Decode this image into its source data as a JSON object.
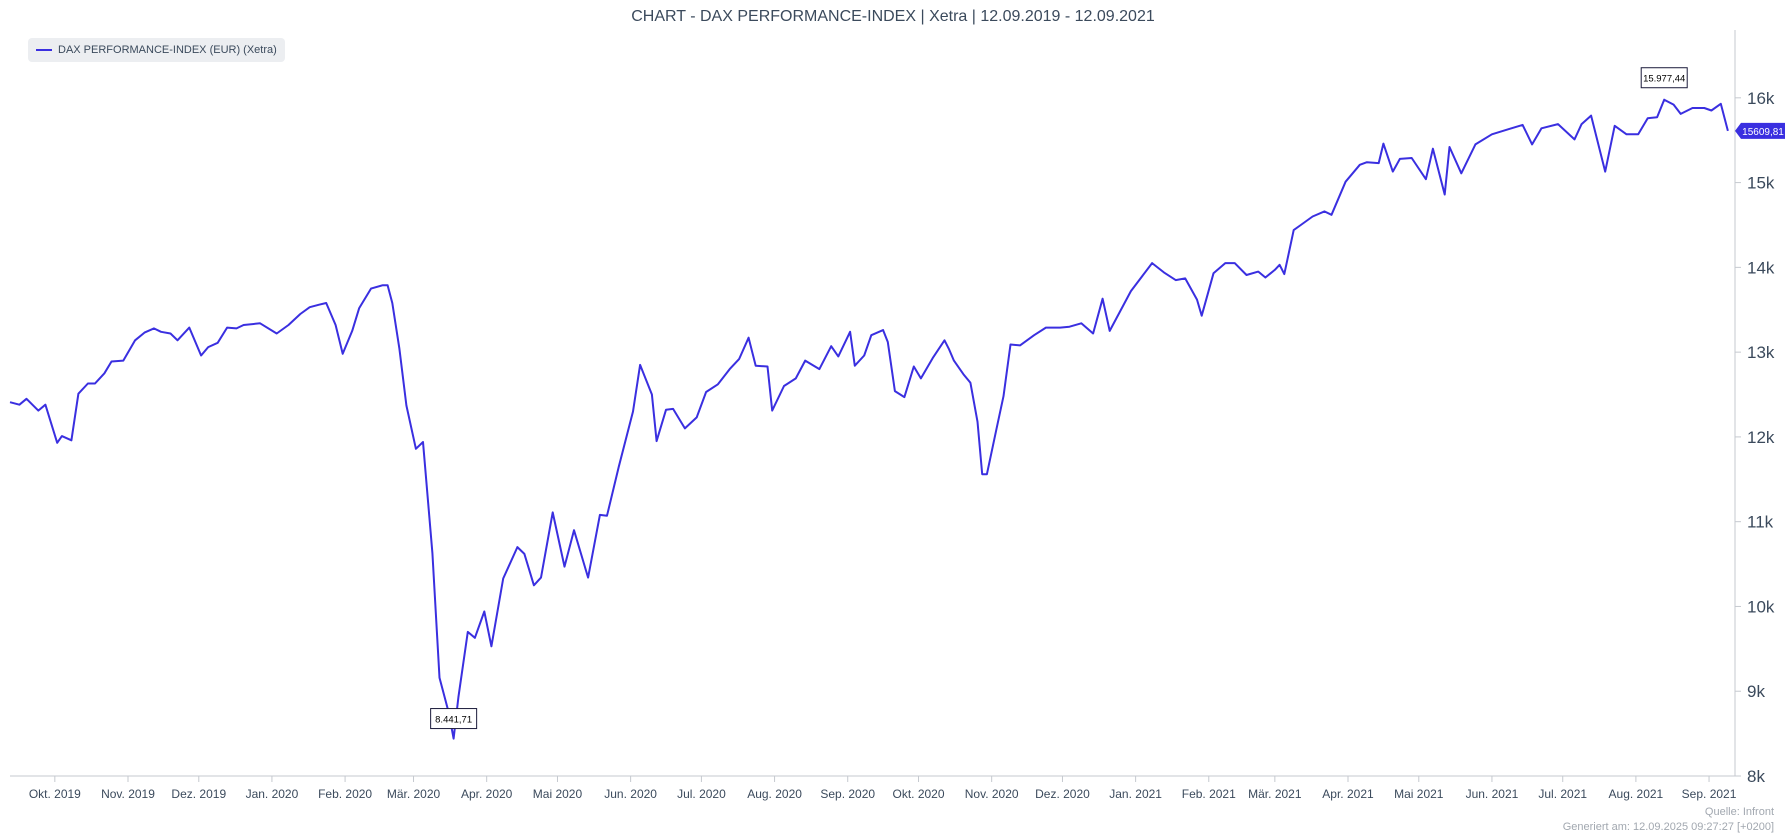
{
  "chart_data": {
    "type": "line",
    "title": "CHART - DAX PERFORMANCE-INDEX | Xetra | 12.09.2019 - 12.09.2021",
    "legend": "DAX PERFORMANCE-INDEX (EUR) (Xetra)",
    "legend_position": "top-left",
    "series_color": "#3a2fe0",
    "grid": false,
    "x_range": [
      "2019-09-12",
      "2021-09-12"
    ],
    "ylim": [
      8000,
      16800
    ],
    "y_ticks": [
      8000,
      9000,
      10000,
      11000,
      12000,
      13000,
      14000,
      15000,
      16000
    ],
    "y_tick_labels": [
      "8k",
      "9k",
      "10k",
      "11k",
      "12k",
      "13k",
      "14k",
      "15k",
      "16k"
    ],
    "x_tick_labels": [
      {
        "date": "2019-10-01",
        "label": "Okt. 2019"
      },
      {
        "date": "2019-11-01",
        "label": "Nov. 2019"
      },
      {
        "date": "2019-12-01",
        "label": "Dez. 2019"
      },
      {
        "date": "2020-01-01",
        "label": "Jan. 2020"
      },
      {
        "date": "2020-02-01",
        "label": "Feb. 2020"
      },
      {
        "date": "2020-03-01",
        "label": "Mär. 2020"
      },
      {
        "date": "2020-04-01",
        "label": "Apr. 2020"
      },
      {
        "date": "2020-05-01",
        "label": "Mai 2020"
      },
      {
        "date": "2020-06-01",
        "label": "Jun. 2020"
      },
      {
        "date": "2020-07-01",
        "label": "Jul. 2020"
      },
      {
        "date": "2020-08-01",
        "label": "Aug. 2020"
      },
      {
        "date": "2020-09-01",
        "label": "Sep. 2020"
      },
      {
        "date": "2020-10-01",
        "label": "Okt. 2020"
      },
      {
        "date": "2020-11-01",
        "label": "Nov. 2020"
      },
      {
        "date": "2020-12-01",
        "label": "Dez. 2020"
      },
      {
        "date": "2021-01-01",
        "label": "Jan. 2021"
      },
      {
        "date": "2021-02-01",
        "label": "Feb. 2021"
      },
      {
        "date": "2021-03-01",
        "label": "Mär. 2021"
      },
      {
        "date": "2021-04-01",
        "label": "Apr. 2021"
      },
      {
        "date": "2021-05-01",
        "label": "Mai 2021"
      },
      {
        "date": "2021-06-01",
        "label": "Jun. 2021"
      },
      {
        "date": "2021-07-01",
        "label": "Jul. 2021"
      },
      {
        "date": "2021-08-01",
        "label": "Aug. 2021"
      },
      {
        "date": "2021-09-01",
        "label": "Sep. 2021"
      }
    ],
    "series": [
      {
        "name": "DAX PERFORMANCE-INDEX (EUR) (Xetra)",
        "points": [
          [
            "2019-09-12",
            12410
          ],
          [
            "2019-09-16",
            12380
          ],
          [
            "2019-09-19",
            12450
          ],
          [
            "2019-09-24",
            12310
          ],
          [
            "2019-09-27",
            12380
          ],
          [
            "2019-10-02",
            11930
          ],
          [
            "2019-10-04",
            12010
          ],
          [
            "2019-10-08",
            11960
          ],
          [
            "2019-10-11",
            12510
          ],
          [
            "2019-10-15",
            12630
          ],
          [
            "2019-10-18",
            12630
          ],
          [
            "2019-10-22",
            12750
          ],
          [
            "2019-10-25",
            12890
          ],
          [
            "2019-10-30",
            12900
          ],
          [
            "2019-11-04",
            13140
          ],
          [
            "2019-11-08",
            13230
          ],
          [
            "2019-11-12",
            13280
          ],
          [
            "2019-11-15",
            13240
          ],
          [
            "2019-11-19",
            13220
          ],
          [
            "2019-11-22",
            13140
          ],
          [
            "2019-11-27",
            13290
          ],
          [
            "2019-12-02",
            12960
          ],
          [
            "2019-12-05",
            13060
          ],
          [
            "2019-12-09",
            13110
          ],
          [
            "2019-12-13",
            13290
          ],
          [
            "2019-12-17",
            13280
          ],
          [
            "2019-12-20",
            13320
          ],
          [
            "2019-12-27",
            13340
          ],
          [
            "2020-01-03",
            13220
          ],
          [
            "2020-01-08",
            13320
          ],
          [
            "2020-01-13",
            13450
          ],
          [
            "2020-01-17",
            13530
          ],
          [
            "2020-01-21",
            13560
          ],
          [
            "2020-01-24",
            13580
          ],
          [
            "2020-01-28",
            13320
          ],
          [
            "2020-01-31",
            12980
          ],
          [
            "2020-02-04",
            13250
          ],
          [
            "2020-02-07",
            13520
          ],
          [
            "2020-02-12",
            13750
          ],
          [
            "2020-02-17",
            13790
          ],
          [
            "2020-02-19",
            13790
          ],
          [
            "2020-02-21",
            13580
          ],
          [
            "2020-02-24",
            13040
          ],
          [
            "2020-02-27",
            12370
          ],
          [
            "2020-03-02",
            11860
          ],
          [
            "2020-03-05",
            11940
          ],
          [
            "2020-03-09",
            10630
          ],
          [
            "2020-03-12",
            9160
          ],
          [
            "2020-03-16",
            8740
          ],
          [
            "2020-03-18",
            8441.71
          ],
          [
            "2020-03-20",
            8930
          ],
          [
            "2020-03-24",
            9700
          ],
          [
            "2020-03-27",
            9630
          ],
          [
            "2020-03-31",
            9940
          ],
          [
            "2020-04-03",
            9530
          ],
          [
            "2020-04-08",
            10330
          ],
          [
            "2020-04-14",
            10700
          ],
          [
            "2020-04-17",
            10620
          ],
          [
            "2020-04-21",
            10250
          ],
          [
            "2020-04-24",
            10340
          ],
          [
            "2020-04-29",
            11110
          ],
          [
            "2020-05-04",
            10470
          ],
          [
            "2020-05-08",
            10900
          ],
          [
            "2020-05-14",
            10340
          ],
          [
            "2020-05-19",
            11080
          ],
          [
            "2020-05-22",
            11070
          ],
          [
            "2020-05-27",
            11650
          ],
          [
            "2020-06-02",
            12300
          ],
          [
            "2020-06-05",
            12850
          ],
          [
            "2020-06-10",
            12500
          ],
          [
            "2020-06-12",
            11950
          ],
          [
            "2020-06-16",
            12320
          ],
          [
            "2020-06-19",
            12330
          ],
          [
            "2020-06-24",
            12100
          ],
          [
            "2020-06-29",
            12230
          ],
          [
            "2020-07-03",
            12530
          ],
          [
            "2020-07-08",
            12620
          ],
          [
            "2020-07-13",
            12800
          ],
          [
            "2020-07-17",
            12920
          ],
          [
            "2020-07-21",
            13170
          ],
          [
            "2020-07-24",
            12840
          ],
          [
            "2020-07-29",
            12830
          ],
          [
            "2020-07-31",
            12310
          ],
          [
            "2020-08-05",
            12600
          ],
          [
            "2020-08-10",
            12690
          ],
          [
            "2020-08-14",
            12900
          ],
          [
            "2020-08-20",
            12800
          ],
          [
            "2020-08-25",
            13070
          ],
          [
            "2020-08-28",
            12950
          ],
          [
            "2020-09-02",
            13240
          ],
          [
            "2020-09-04",
            12840
          ],
          [
            "2020-09-08",
            12960
          ],
          [
            "2020-09-11",
            13200
          ],
          [
            "2020-09-16",
            13260
          ],
          [
            "2020-09-18",
            13120
          ],
          [
            "2020-09-21",
            12540
          ],
          [
            "2020-09-25",
            12470
          ],
          [
            "2020-09-29",
            12830
          ],
          [
            "2020-10-02",
            12690
          ],
          [
            "2020-10-07",
            12930
          ],
          [
            "2020-10-12",
            13140
          ],
          [
            "2020-10-14",
            13030
          ],
          [
            "2020-10-16",
            12900
          ],
          [
            "2020-10-20",
            12740
          ],
          [
            "2020-10-23",
            12640
          ],
          [
            "2020-10-26",
            12180
          ],
          [
            "2020-10-28",
            11560
          ],
          [
            "2020-10-30",
            11560
          ],
          [
            "2020-11-03",
            12090
          ],
          [
            "2020-11-06",
            12480
          ],
          [
            "2020-11-09",
            13090
          ],
          [
            "2020-11-13",
            13080
          ],
          [
            "2020-11-19",
            13200
          ],
          [
            "2020-11-24",
            13290
          ],
          [
            "2020-11-30",
            13290
          ],
          [
            "2020-12-04",
            13300
          ],
          [
            "2020-12-09",
            13340
          ],
          [
            "2020-12-14",
            13220
          ],
          [
            "2020-12-18",
            13630
          ],
          [
            "2020-12-21",
            13250
          ],
          [
            "2020-12-30",
            13720
          ],
          [
            "2021-01-08",
            14050
          ],
          [
            "2021-01-13",
            13940
          ],
          [
            "2021-01-18",
            13850
          ],
          [
            "2021-01-22",
            13870
          ],
          [
            "2021-01-27",
            13620
          ],
          [
            "2021-01-29",
            13430
          ],
          [
            "2021-02-03",
            13930
          ],
          [
            "2021-02-08",
            14050
          ],
          [
            "2021-02-12",
            14050
          ],
          [
            "2021-02-17",
            13910
          ],
          [
            "2021-02-22",
            13950
          ],
          [
            "2021-02-25",
            13880
          ],
          [
            "2021-03-01",
            13970
          ],
          [
            "2021-03-03",
            14030
          ],
          [
            "2021-03-05",
            13920
          ],
          [
            "2021-03-09",
            14440
          ],
          [
            "2021-03-12",
            14500
          ],
          [
            "2021-03-17",
            14600
          ],
          [
            "2021-03-22",
            14660
          ],
          [
            "2021-03-25",
            14620
          ],
          [
            "2021-03-31",
            15010
          ],
          [
            "2021-04-06",
            15210
          ],
          [
            "2021-04-09",
            15240
          ],
          [
            "2021-04-14",
            15230
          ],
          [
            "2021-04-16",
            15460
          ],
          [
            "2021-04-20",
            15130
          ],
          [
            "2021-04-23",
            15280
          ],
          [
            "2021-04-28",
            15290
          ],
          [
            "2021-05-04",
            15040
          ],
          [
            "2021-05-07",
            15400
          ],
          [
            "2021-05-12",
            14860
          ],
          [
            "2021-05-14",
            15420
          ],
          [
            "2021-05-19",
            15110
          ],
          [
            "2021-05-25",
            15450
          ],
          [
            "2021-06-01",
            15570
          ],
          [
            "2021-06-08",
            15630
          ],
          [
            "2021-06-14",
            15680
          ],
          [
            "2021-06-18",
            15450
          ],
          [
            "2021-06-22",
            15640
          ],
          [
            "2021-06-29",
            15690
          ],
          [
            "2021-07-06",
            15510
          ],
          [
            "2021-07-09",
            15690
          ],
          [
            "2021-07-13",
            15790
          ],
          [
            "2021-07-19",
            15130
          ],
          [
            "2021-07-23",
            15670
          ],
          [
            "2021-07-28",
            15570
          ],
          [
            "2021-08-02",
            15570
          ],
          [
            "2021-08-06",
            15760
          ],
          [
            "2021-08-10",
            15770
          ],
          [
            "2021-08-13",
            15977.44
          ],
          [
            "2021-08-17",
            15920
          ],
          [
            "2021-08-20",
            15810
          ],
          [
            "2021-08-25",
            15880
          ],
          [
            "2021-08-30",
            15880
          ],
          [
            "2021-09-02",
            15850
          ],
          [
            "2021-09-06",
            15930
          ],
          [
            "2021-09-09",
            15609.81
          ]
        ]
      }
    ],
    "annotations": [
      {
        "label": "8.441,71",
        "date": "2020-03-18",
        "value": 8441.71
      },
      {
        "label": "15.977,44",
        "date": "2021-08-13",
        "value": 15977.44
      }
    ],
    "last_value_label": "15609,81",
    "last_value": 15609.81
  },
  "footer": {
    "source": "Quelle: Infront",
    "generated": "Generiert am: 12.09.2025 09:27:27 [+0200]"
  }
}
